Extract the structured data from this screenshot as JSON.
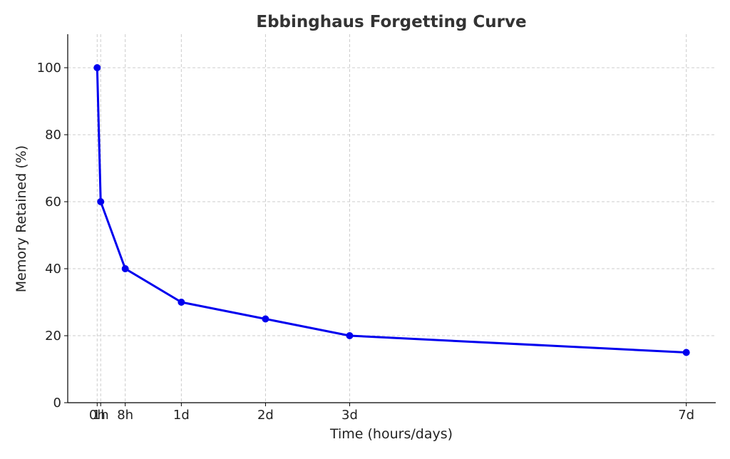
{
  "chart_data": {
    "type": "line",
    "title": "Ebbinghaus Forgetting Curve",
    "xlabel": "Time (hours/days)",
    "ylabel": "Memory Retained (%)",
    "x_unit": "hours",
    "x": [
      0,
      1,
      8,
      24,
      48,
      72,
      168
    ],
    "x_tick_labels": [
      "0h",
      "1h",
      "8h",
      "1d",
      "2d",
      "3d",
      "7d"
    ],
    "series": [
      {
        "values": [
          100,
          60,
          40,
          30,
          25,
          20,
          15
        ],
        "color": "#0000ee",
        "marker": "circle"
      }
    ],
    "xlim": [
      -8.4,
      176.4
    ],
    "ylim": [
      0,
      110
    ],
    "y_ticks": [
      0,
      20,
      40,
      60,
      80,
      100
    ],
    "grid": true,
    "legend": "none"
  }
}
